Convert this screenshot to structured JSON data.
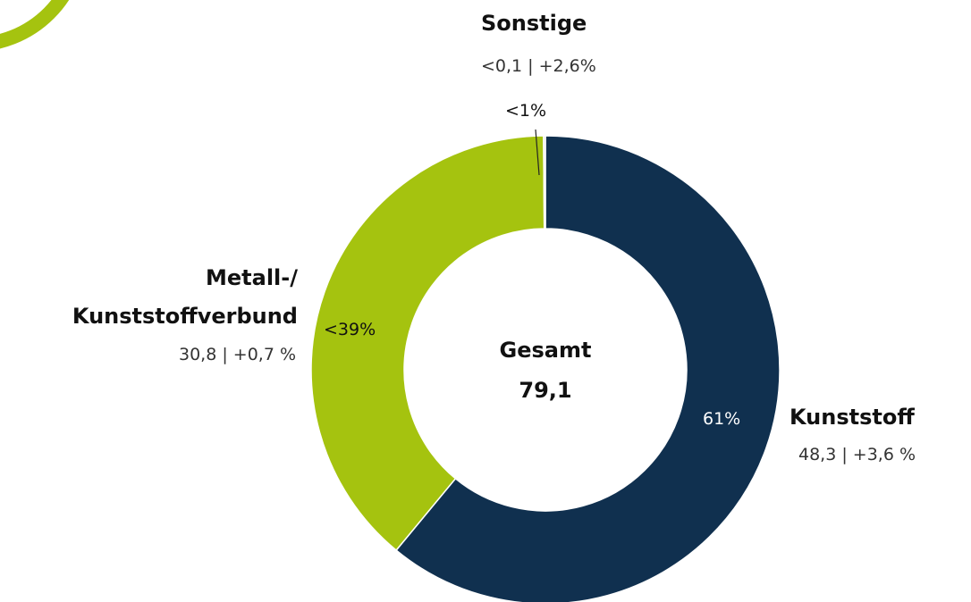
{
  "chart_data": {
    "type": "donut",
    "categories": [
      "Kunststoff",
      "Metall-/\nKunststoffverbund",
      "Sonstige"
    ],
    "values": [
      48.3,
      30.8,
      0.1
    ],
    "value_labels": [
      "48,3 | +3,6 %",
      "30,8 | +0,7 %",
      "<0,1 | +2,6%"
    ],
    "percent_labels": [
      "61%",
      "<39%",
      "<1%"
    ],
    "colors": [
      "#10304f",
      "#a5c30f",
      "#d9d9d9"
    ],
    "center_label": "Gesamt",
    "total": {
      "value": 79.1,
      "label": "79,1"
    }
  }
}
